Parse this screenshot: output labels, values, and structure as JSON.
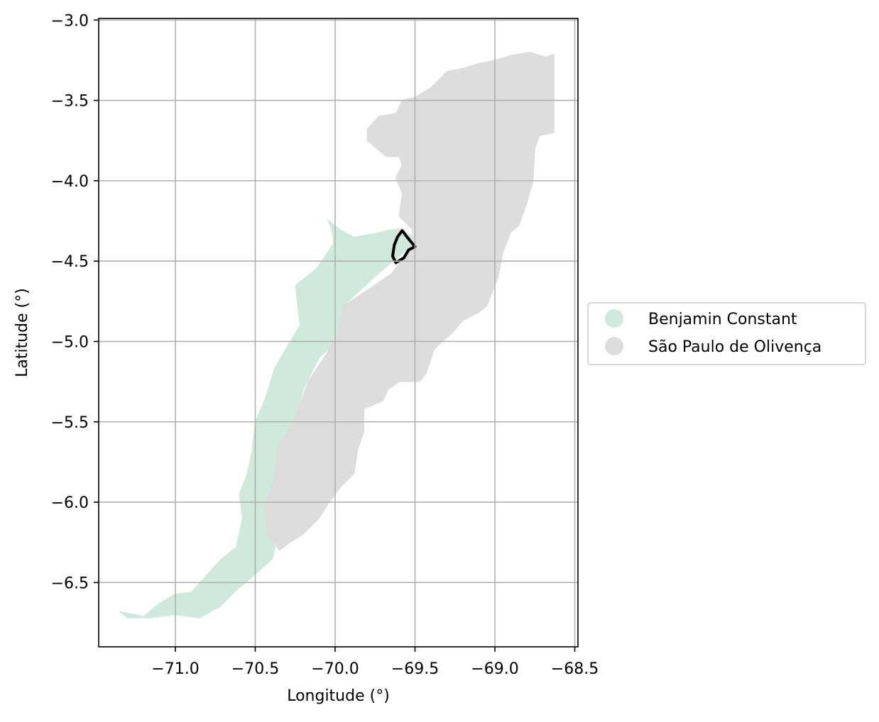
{
  "chart_data": {
    "type": "map",
    "xlabel": "Longitude (°)",
    "ylabel": "Latitude (°)",
    "xlim": [
      -71.48,
      -68.48
    ],
    "ylim": [
      -6.9,
      -2.99
    ],
    "xticks": [
      -71.0,
      -70.5,
      -70.0,
      -69.5,
      -69.0,
      -68.5
    ],
    "xtick_labels": [
      "−71.0",
      "−70.5",
      "−70.0",
      "−69.5",
      "−69.0",
      "−68.5"
    ],
    "yticks": [
      -3.0,
      -3.5,
      -4.0,
      -4.5,
      -5.0,
      -5.5,
      -6.0,
      -6.5
    ],
    "ytick_labels": [
      "−3.0",
      "−3.5",
      "−4.0",
      "−4.5",
      "−5.0",
      "−5.5",
      "−6.0",
      "−6.5"
    ],
    "grid": true,
    "legend_placement": "right-center",
    "series": [
      {
        "name": "Benjamin Constant",
        "color": "#cfeadc",
        "polygon": [
          [
            -71.35,
            -6.68
          ],
          [
            -71.3,
            -6.69
          ],
          [
            -71.2,
            -6.71
          ],
          [
            -71.1,
            -6.63
          ],
          [
            -71.0,
            -6.57
          ],
          [
            -70.9,
            -6.56
          ],
          [
            -70.8,
            -6.45
          ],
          [
            -70.72,
            -6.36
          ],
          [
            -70.62,
            -6.28
          ],
          [
            -70.58,
            -6.1
          ],
          [
            -70.6,
            -5.95
          ],
          [
            -70.55,
            -5.82
          ],
          [
            -70.52,
            -5.68
          ],
          [
            -70.5,
            -5.5
          ],
          [
            -70.44,
            -5.36
          ],
          [
            -70.38,
            -5.17
          ],
          [
            -70.3,
            -5.03
          ],
          [
            -70.22,
            -4.9
          ],
          [
            -70.25,
            -4.65
          ],
          [
            -70.12,
            -4.55
          ],
          [
            -70.07,
            -4.48
          ],
          [
            -70.01,
            -4.39
          ],
          [
            -70.02,
            -4.31
          ],
          [
            -70.04,
            -4.26
          ],
          [
            -70.05,
            -4.24
          ],
          [
            -69.96,
            -4.31
          ],
          [
            -69.88,
            -4.35
          ],
          [
            -69.76,
            -4.33
          ],
          [
            -69.68,
            -4.31
          ],
          [
            -69.6,
            -4.3
          ],
          [
            -69.54,
            -4.33
          ],
          [
            -69.46,
            -4.37
          ],
          [
            -69.55,
            -4.43
          ],
          [
            -69.72,
            -4.57
          ],
          [
            -69.95,
            -4.78
          ],
          [
            -69.98,
            -5.0
          ],
          [
            -70.1,
            -5.1
          ],
          [
            -70.2,
            -5.3
          ],
          [
            -70.25,
            -5.5
          ],
          [
            -70.32,
            -5.75
          ],
          [
            -70.3,
            -6.0
          ],
          [
            -70.35,
            -6.15
          ],
          [
            -70.39,
            -6.35
          ],
          [
            -70.5,
            -6.45
          ],
          [
            -70.62,
            -6.55
          ],
          [
            -70.72,
            -6.65
          ],
          [
            -70.85,
            -6.72
          ],
          [
            -71.0,
            -6.7
          ],
          [
            -71.15,
            -6.72
          ],
          [
            -71.3,
            -6.72
          ]
        ]
      },
      {
        "name": "São Paulo de Olivença",
        "color": "#dddddd",
        "polygon": [
          [
            -68.63,
            -3.21
          ],
          [
            -68.63,
            -3.7
          ],
          [
            -68.72,
            -3.72
          ],
          [
            -68.75,
            -3.8
          ],
          [
            -68.76,
            -4.0
          ],
          [
            -68.8,
            -4.14
          ],
          [
            -68.85,
            -4.28
          ],
          [
            -68.9,
            -4.32
          ],
          [
            -68.95,
            -4.45
          ],
          [
            -68.98,
            -4.6
          ],
          [
            -69.05,
            -4.78
          ],
          [
            -69.1,
            -4.82
          ],
          [
            -69.2,
            -4.87
          ],
          [
            -69.27,
            -4.95
          ],
          [
            -69.33,
            -5.0
          ],
          [
            -69.38,
            -5.05
          ],
          [
            -69.43,
            -5.2
          ],
          [
            -69.47,
            -5.25
          ],
          [
            -69.6,
            -5.25
          ],
          [
            -69.67,
            -5.3
          ],
          [
            -69.7,
            -5.37
          ],
          [
            -69.82,
            -5.42
          ],
          [
            -69.82,
            -5.56
          ],
          [
            -69.86,
            -5.68
          ],
          [
            -69.88,
            -5.82
          ],
          [
            -69.96,
            -5.9
          ],
          [
            -70.05,
            -6.02
          ],
          [
            -70.1,
            -6.1
          ],
          [
            -70.2,
            -6.2
          ],
          [
            -70.28,
            -6.25
          ],
          [
            -70.35,
            -6.3
          ],
          [
            -70.42,
            -6.2
          ],
          [
            -70.45,
            -6.05
          ],
          [
            -70.38,
            -5.85
          ],
          [
            -70.36,
            -5.65
          ],
          [
            -70.26,
            -5.5
          ],
          [
            -70.17,
            -5.25
          ],
          [
            -70.05,
            -5.07
          ],
          [
            -69.98,
            -4.95
          ],
          [
            -69.95,
            -4.78
          ],
          [
            -69.8,
            -4.68
          ],
          [
            -69.65,
            -4.58
          ],
          [
            -69.55,
            -4.45
          ],
          [
            -69.5,
            -4.4
          ],
          [
            -69.52,
            -4.3
          ],
          [
            -69.6,
            -4.22
          ],
          [
            -69.58,
            -4.08
          ],
          [
            -69.62,
            -3.98
          ],
          [
            -69.58,
            -3.9
          ],
          [
            -69.6,
            -3.85
          ],
          [
            -69.68,
            -3.85
          ],
          [
            -69.74,
            -3.8
          ],
          [
            -69.8,
            -3.75
          ],
          [
            -69.8,
            -3.68
          ],
          [
            -69.73,
            -3.6
          ],
          [
            -69.62,
            -3.58
          ],
          [
            -69.58,
            -3.5
          ],
          [
            -69.5,
            -3.48
          ],
          [
            -69.4,
            -3.42
          ],
          [
            -69.3,
            -3.32
          ],
          [
            -69.2,
            -3.3
          ],
          [
            -69.1,
            -3.27
          ],
          [
            -69.0,
            -3.25
          ],
          [
            -68.9,
            -3.22
          ],
          [
            -68.78,
            -3.2
          ],
          [
            -68.68,
            -3.23
          ]
        ]
      }
    ],
    "outline": {
      "color": "#000000",
      "polygon": [
        [
          -69.58,
          -4.31
        ],
        [
          -69.55,
          -4.35
        ],
        [
          -69.5,
          -4.41
        ],
        [
          -69.54,
          -4.43
        ],
        [
          -69.57,
          -4.48
        ],
        [
          -69.62,
          -4.51
        ],
        [
          -69.64,
          -4.47
        ],
        [
          -69.63,
          -4.4
        ],
        [
          -69.61,
          -4.35
        ]
      ]
    }
  }
}
